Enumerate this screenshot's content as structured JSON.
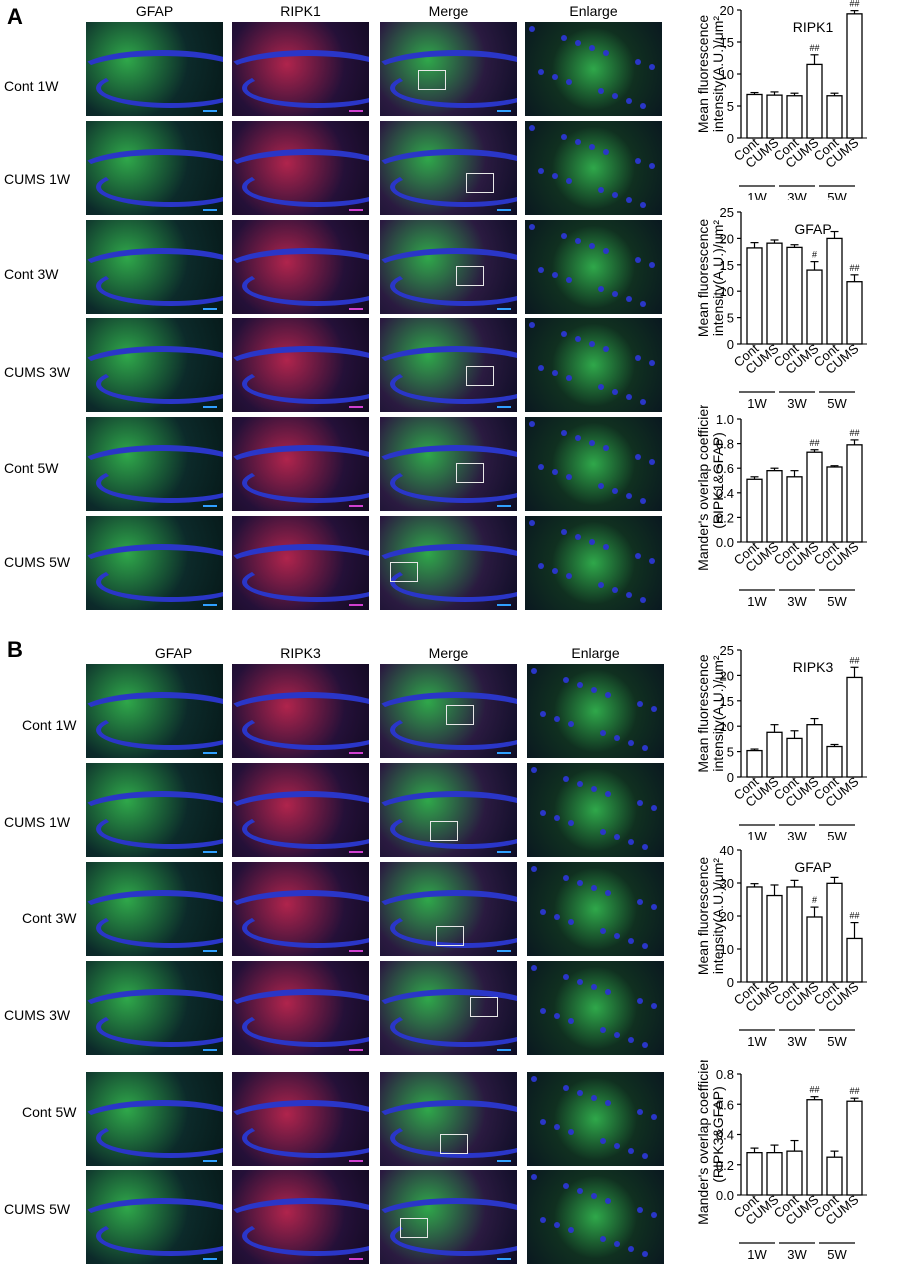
{
  "panels": [
    {
      "letter": "A",
      "columns": [
        "GFAP",
        "RIPK1",
        "Merge",
        "Enlarge"
      ],
      "rows": [
        "Cont 1W",
        "CUMS 1W",
        "Cont  3W",
        "CUMS 3W",
        "Cont 5W",
        "CUMS 5W"
      ],
      "stain_colors": {
        "GFAP": "#2fa84a",
        "RIPK1": "#b0244c",
        "nuclei": "#2a36c8"
      }
    },
    {
      "letter": "B",
      "columns": [
        "GFAP",
        "RIPK3",
        "Merge",
        "Enlarge"
      ],
      "rows": [
        "Cont 1W",
        "CUMS 1W",
        "Cont  3W",
        "CUMS 3W",
        "Cont 5W",
        "CUMS 5W"
      ],
      "stain_colors": {
        "GFAP": "#2fa84a",
        "RIPK3": "#b0244c",
        "nuclei": "#2a36c8"
      }
    }
  ],
  "chart_data": [
    {
      "type": "bar",
      "title": "RIPK1",
      "ylabel": "Mean fluorescence intensity(A.U.)/μm²",
      "ylim": [
        0,
        20
      ],
      "yticks": [
        0,
        5,
        10,
        15,
        20
      ],
      "categories": [
        "Cont",
        "CUMS",
        "Cont",
        "CUMS",
        "Cont",
        "CUMS"
      ],
      "groups": [
        "1W",
        "3W",
        "5W"
      ],
      "values": [
        6.8,
        6.7,
        6.6,
        11.5,
        6.6,
        19.4
      ],
      "errors": [
        0.3,
        0.5,
        0.4,
        1.5,
        0.4,
        0.5
      ],
      "annotations": [
        "",
        "",
        "",
        "##",
        "",
        "##"
      ]
    },
    {
      "type": "bar",
      "title": "GFAP",
      "ylabel": "Mean fluorescence intensity(A.U.)/μm²",
      "ylim": [
        0,
        25
      ],
      "yticks": [
        0,
        5,
        10,
        15,
        20,
        25
      ],
      "categories": [
        "Cont",
        "CUMS",
        "Cont",
        "CUMS",
        "Cont",
        "CUMS"
      ],
      "groups": [
        "1W",
        "3W",
        "5W"
      ],
      "values": [
        18.2,
        19.1,
        18.3,
        14.0,
        20.0,
        11.8
      ],
      "errors": [
        1.0,
        0.6,
        0.5,
        1.6,
        1.3,
        1.3
      ],
      "annotations": [
        "",
        "",
        "",
        "#",
        "",
        "##"
      ]
    },
    {
      "type": "bar",
      "title": "",
      "ylabel": "Mander's overlap coefficients (RIPK1&GFAP)",
      "ylim": [
        0,
        1.0
      ],
      "yticks": [
        "0.0",
        "0.2",
        "0.4",
        "0.6",
        "0.8",
        "1.0"
      ],
      "categories": [
        "Cont",
        "CUMS",
        "Cont",
        "CUMS",
        "Cont",
        "CUMS"
      ],
      "groups": [
        "1W",
        "3W",
        "5W"
      ],
      "values": [
        0.51,
        0.58,
        0.53,
        0.73,
        0.61,
        0.79
      ],
      "errors": [
        0.02,
        0.02,
        0.05,
        0.02,
        0.01,
        0.04
      ],
      "annotations": [
        "",
        "",
        "",
        "##",
        "",
        "##"
      ]
    },
    {
      "type": "bar",
      "title": "RIPK3",
      "ylabel": "Mean fluorescence intensity(A.U.)/μm²",
      "ylim": [
        0,
        25
      ],
      "yticks": [
        0,
        5,
        10,
        15,
        20,
        25
      ],
      "categories": [
        "Cont",
        "CUMS",
        "Cont",
        "CUMS",
        "Cont",
        "CUMS"
      ],
      "groups": [
        "1W",
        "3W",
        "5W"
      ],
      "values": [
        5.2,
        8.8,
        7.6,
        10.3,
        6.0,
        19.6
      ],
      "errors": [
        0.3,
        1.5,
        1.5,
        1.2,
        0.4,
        2.0
      ],
      "annotations": [
        "",
        "",
        "",
        "",
        "",
        "##"
      ]
    },
    {
      "type": "bar",
      "title": "GFAP",
      "ylabel": "Mean fluorescence intensity(A.U.)/μm²",
      "ylim": [
        0,
        40
      ],
      "yticks": [
        0,
        10,
        20,
        30,
        40
      ],
      "categories": [
        "Cont",
        "CUMS",
        "Cont",
        "CUMS",
        "Cont",
        "CUMS"
      ],
      "groups": [
        "1W",
        "3W",
        "5W"
      ],
      "values": [
        28.8,
        26.2,
        28.8,
        19.7,
        29.9,
        13.2
      ],
      "errors": [
        1.0,
        3.2,
        2.0,
        3.0,
        1.8,
        4.8
      ],
      "annotations": [
        "",
        "",
        "",
        "#",
        "",
        "##"
      ]
    },
    {
      "type": "bar",
      "title": "",
      "ylabel": "Mander's overlap coefficients (RIPK3&GFAP)",
      "ylim": [
        0,
        0.8
      ],
      "yticks": [
        "0.0",
        "0.2",
        "0.4",
        "0.6",
        "0.8"
      ],
      "categories": [
        "Cont",
        "CUMS",
        "Cont",
        "CUMS",
        "Cont",
        "CUMS"
      ],
      "groups": [
        "1W",
        "3W",
        "5W"
      ],
      "values": [
        0.28,
        0.28,
        0.29,
        0.63,
        0.25,
        0.62
      ],
      "errors": [
        0.03,
        0.05,
        0.07,
        0.02,
        0.04,
        0.02
      ],
      "annotations": [
        "",
        "",
        "",
        "##",
        "",
        "##"
      ]
    }
  ]
}
